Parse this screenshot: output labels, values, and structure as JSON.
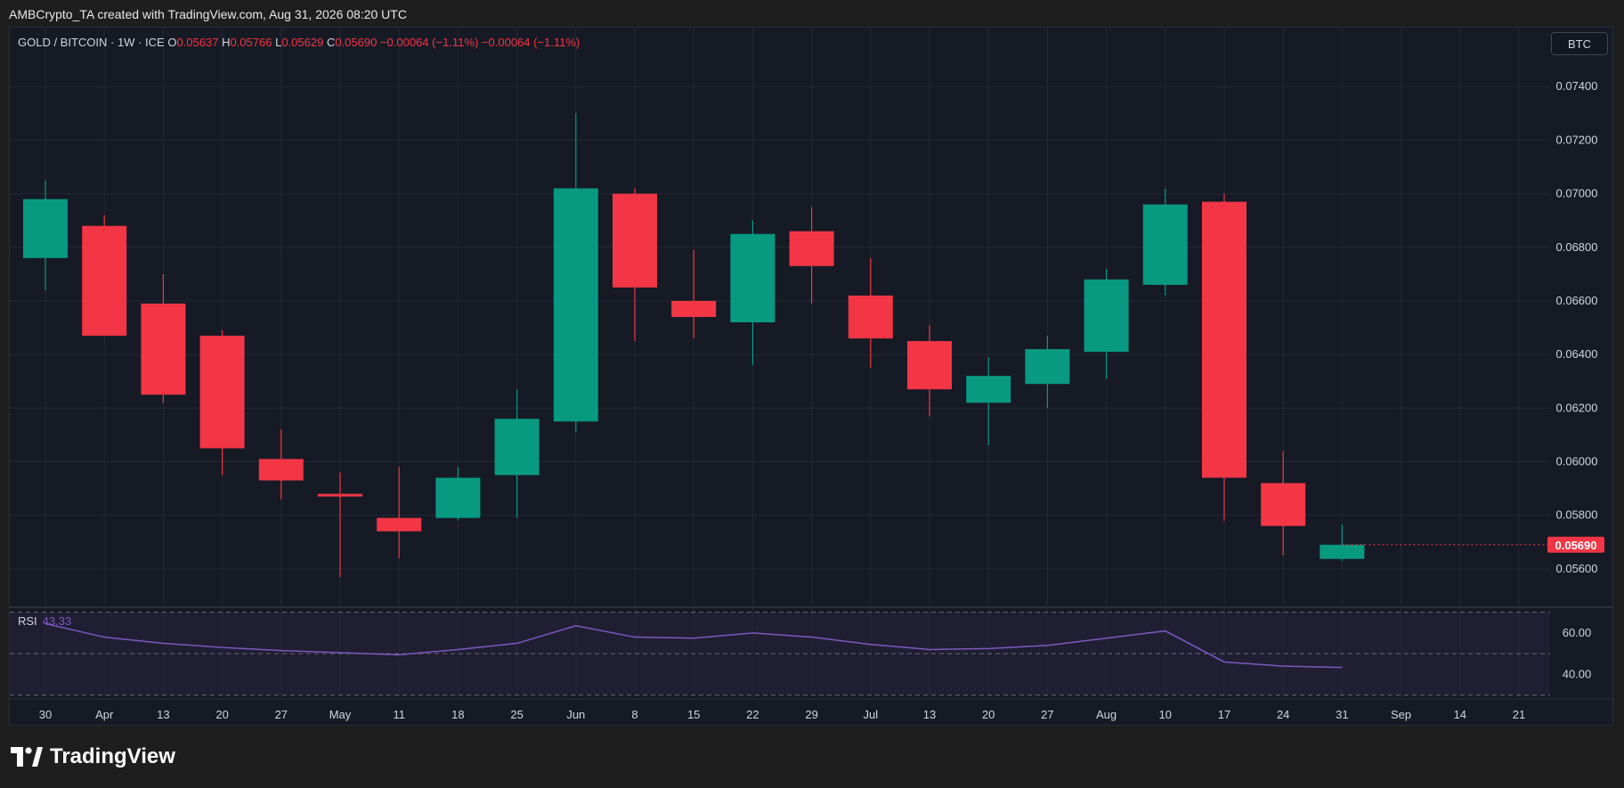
{
  "caption": "AMBCrypto_TA created with TradingView.com, Aug 31, 2026 08:20 UTC",
  "legend": {
    "symbol": "GOLD / BITCOIN · 1W · ICE",
    "o_key": "O",
    "o": "0.05637",
    "h_key": "H",
    "h": "0.05766",
    "l_key": "L",
    "l": "0.05629",
    "c_key": "C",
    "c": "0.05690",
    "change1": "−0.00064 (−1.11%)",
    "change2": "−0.00064 (−1.11%)"
  },
  "currency": "BTC",
  "rsi": {
    "label": "RSI",
    "value": "43.33"
  },
  "brand": "TradingView",
  "colors": {
    "up": "#089981",
    "down": "#f23645",
    "rsi_line": "#7e57c2",
    "rsi_band": "#2a2240",
    "grid": "#242835",
    "axis_text": "#d1d4dc"
  },
  "chart_data": {
    "type": "candlestick",
    "title": "GOLD / BITCOIN",
    "interval": "1W",
    "x_ticks": [
      "30",
      "Apr",
      "13",
      "20",
      "27",
      "May",
      "11",
      "18",
      "25",
      "Jun",
      "8",
      "15",
      "22",
      "29",
      "Jul",
      "13",
      "20",
      "27",
      "Aug",
      "10",
      "17",
      "24",
      "31",
      "Sep",
      "14",
      "21"
    ],
    "y_ticks": [
      "0.07400",
      "0.07200",
      "0.07000",
      "0.06800",
      "0.06600",
      "0.06400",
      "0.06200",
      "0.06000",
      "0.05800",
      "0.05600"
    ],
    "last_price_label": "0.05690",
    "ylim": [
      0.0546,
      0.0762
    ],
    "candles": [
      {
        "o": 0.0676,
        "h": 0.0705,
        "l": 0.0664,
        "c": 0.0698
      },
      {
        "o": 0.0688,
        "h": 0.0692,
        "l": 0.0647,
        "c": 0.0647
      },
      {
        "o": 0.0659,
        "h": 0.067,
        "l": 0.0622,
        "c": 0.0625
      },
      {
        "o": 0.0647,
        "h": 0.0649,
        "l": 0.0595,
        "c": 0.0605
      },
      {
        "o": 0.0601,
        "h": 0.0612,
        "l": 0.0586,
        "c": 0.0593
      },
      {
        "o": 0.0588,
        "h": 0.0596,
        "l": 0.0557,
        "c": 0.0587
      },
      {
        "o": 0.0579,
        "h": 0.0598,
        "l": 0.0564,
        "c": 0.0574
      },
      {
        "o": 0.0579,
        "h": 0.0598,
        "l": 0.0578,
        "c": 0.0594
      },
      {
        "o": 0.0595,
        "h": 0.0627,
        "l": 0.0579,
        "c": 0.0616
      },
      {
        "o": 0.0615,
        "h": 0.073,
        "l": 0.0611,
        "c": 0.0702
      },
      {
        "o": 0.07,
        "h": 0.0702,
        "l": 0.0645,
        "c": 0.0665
      },
      {
        "o": 0.066,
        "h": 0.0679,
        "l": 0.0646,
        "c": 0.0654
      },
      {
        "o": 0.0652,
        "h": 0.069,
        "l": 0.0636,
        "c": 0.0685
      },
      {
        "o": 0.0686,
        "h": 0.0695,
        "l": 0.0659,
        "c": 0.0673
      },
      {
        "o": 0.0662,
        "h": 0.0676,
        "l": 0.0635,
        "c": 0.0646
      },
      {
        "o": 0.0645,
        "h": 0.0651,
        "l": 0.0617,
        "c": 0.0627
      },
      {
        "o": 0.0622,
        "h": 0.0639,
        "l": 0.0606,
        "c": 0.0632
      },
      {
        "o": 0.0629,
        "h": 0.0647,
        "l": 0.062,
        "c": 0.0642
      },
      {
        "o": 0.0641,
        "h": 0.0672,
        "l": 0.0631,
        "c": 0.0668
      },
      {
        "o": 0.0666,
        "h": 0.0702,
        "l": 0.0662,
        "c": 0.0696
      },
      {
        "o": 0.0697,
        "h": 0.07,
        "l": 0.0578,
        "c": 0.0594
      },
      {
        "o": 0.0592,
        "h": 0.0604,
        "l": 0.0565,
        "c": 0.0576
      },
      {
        "o": 0.05637,
        "h": 0.05766,
        "l": 0.05629,
        "c": 0.0569
      }
    ],
    "rsi_levels": [
      "60.00",
      "40.00"
    ],
    "rsi_ylim": [
      29,
      72
    ],
    "rsi_band": [
      30,
      70
    ],
    "rsi_values": [
      64.5,
      58,
      55,
      53,
      51.5,
      50.5,
      49.5,
      52,
      55,
      63.5,
      58,
      57.5,
      60,
      58,
      54.5,
      52,
      52.5,
      54,
      57.5,
      61,
      46,
      44,
      43.33
    ]
  }
}
